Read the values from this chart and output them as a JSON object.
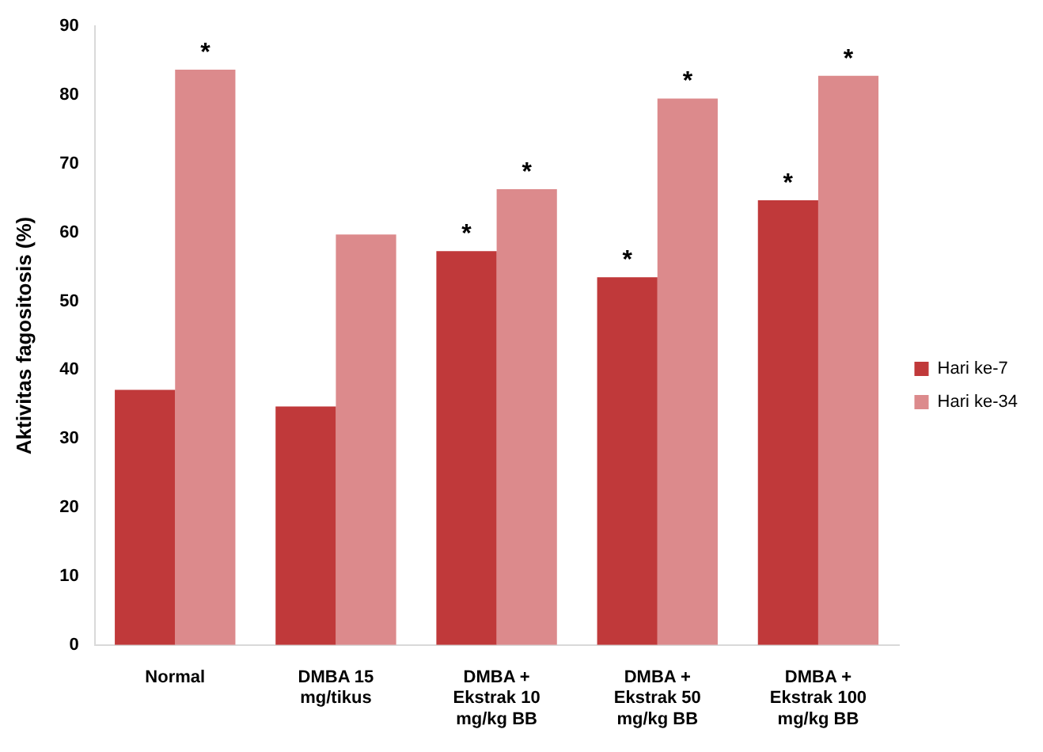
{
  "chart_data": {
    "type": "bar",
    "ylabel": "Aktivitas fagositosis (%)",
    "categories": [
      "Normal",
      "DMBA 15\nmg/tikus",
      "DMBA +\nEkstrak 10\nmg/kg BB",
      "DMBA +\nEkstrak 50\nmg/kg BB",
      "DMBA +\nEkstrak 100\nmg/kg BB"
    ],
    "series": [
      {
        "name": "Hari ke-7",
        "color": "#c0393a",
        "values": [
          37.1,
          34.7,
          57.3,
          53.5,
          64.7
        ]
      },
      {
        "name": "Hari ke-34",
        "color": "#dc8a8c",
        "values": [
          83.7,
          59.7,
          66.3,
          79.5,
          82.8
        ]
      }
    ],
    "ylim": [
      0,
      90
    ],
    "yticks": [
      0,
      10,
      20,
      30,
      40,
      50,
      60,
      70,
      80,
      90
    ],
    "grid": false,
    "legend": "right",
    "annotations": [
      {
        "text": "*",
        "x": "Normal",
        "y": 83.7
      },
      {
        "text": "*",
        "x": "DMBA +\nEkstrak 10\nmg/kg BB",
        "y": 57.3
      },
      {
        "text": "*",
        "x": "DMBA +\nEkstrak 10\nmg/kg BB",
        "y": 66.3
      },
      {
        "text": "*",
        "x": "DMBA +\nEkstrak 50\nmg/kg BB",
        "y": 53.5
      },
      {
        "text": "*",
        "x": "DMBA +\nEkstrak 50\nmg/kg BB",
        "y": 79.5
      },
      {
        "text": "*",
        "x": "DMBA +\nEkstrak 100\nmg/kg BB",
        "y": 64.7
      },
      {
        "text": "*",
        "x": "DMBA +\nEkstrak 100\nmg/kg BB",
        "y": 82.8
      }
    ]
  }
}
